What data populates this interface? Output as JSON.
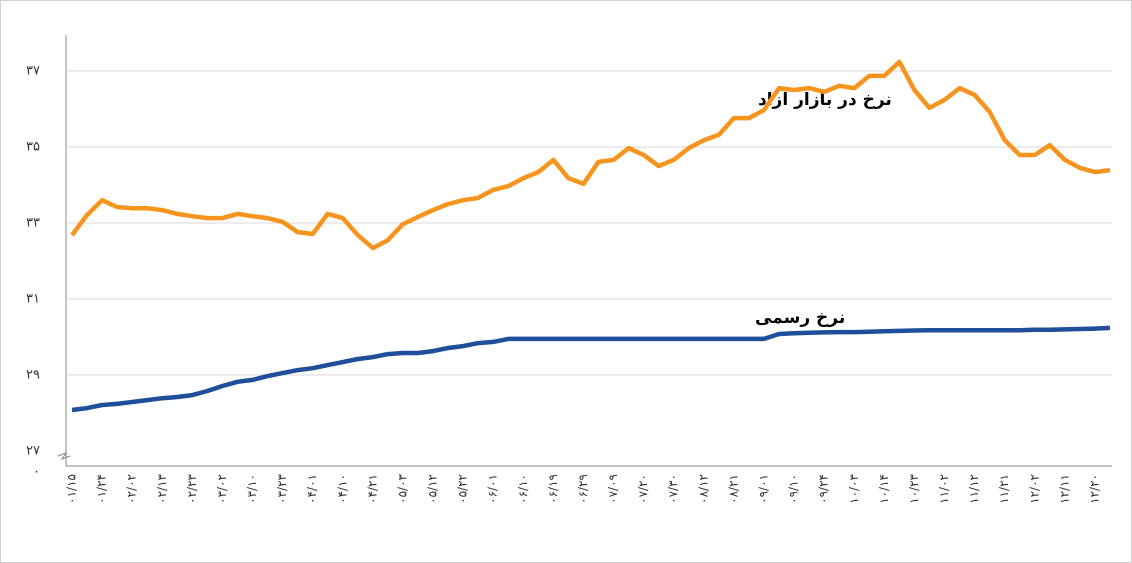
{
  "chart_data": {
    "type": "line",
    "annotations": [
      "نرخ در بازار آزاد",
      "نرخ رسمی"
    ],
    "categories": [
      "۰۱/۱۵",
      null,
      "۰۱/۲۴",
      null,
      "۰۲/۰۲",
      null,
      "۰۲/۱۳",
      null,
      "۰۲/۲۳",
      null,
      "۰۳/۰۲",
      null,
      "۰۳/۱۰",
      null,
      "۰۳/۲۳",
      null,
      "۰۴/۰۱",
      null,
      "۰۴/۱۰",
      null,
      "۰۴/۲۱",
      null,
      "۰۵/۰۳",
      null,
      "۰۵/۱۲",
      null,
      "۰۵/۲۲",
      null,
      "۰۶/۰۱",
      null,
      "۰۶/۱۰",
      null,
      "۰۶/۱۹",
      null,
      "۰۶/۲۹",
      null,
      "۰۷/۰۹",
      null,
      "۰۷/۲۰",
      null,
      "۰۷/۳۰",
      null,
      "۰۸/۱۲",
      null,
      "۰۸/۲۱",
      null,
      "۰۹/۰۱",
      null,
      "۰۹/۱۰",
      null,
      "۰۹/۲۴",
      null,
      "۱۰/۰۳",
      null,
      "۱۰/۱۴",
      null,
      "۱۰/۲۳",
      null,
      "۱۱/۰۲",
      null,
      "۱۱/۱۲",
      null,
      "۱۱/۲۱",
      null,
      "۱۲/۰۲",
      null,
      "۱۲/۱۱",
      null,
      "۱۲/۲۰",
      null
    ],
    "series": [
      {
        "name": "نرخ در بازار آزاد",
        "color": "#f7941d",
        "values": [
          32.68,
          33.21,
          33.6,
          33.42,
          33.39,
          33.39,
          33.34,
          33.24,
          33.18,
          33.13,
          33.13,
          33.24,
          33.18,
          33.13,
          33.03,
          32.76,
          32.71,
          33.24,
          33.13,
          32.68,
          32.34,
          32.55,
          32.97,
          33.16,
          33.34,
          33.5,
          33.6,
          33.66,
          33.87,
          33.97,
          34.18,
          34.34,
          34.66,
          34.18,
          34.03,
          34.61,
          34.66,
          34.97,
          34.79,
          34.5,
          34.66,
          34.97,
          35.18,
          35.32,
          35.76,
          35.76,
          35.97,
          36.55,
          36.5,
          36.55,
          36.45,
          36.61,
          36.55,
          36.87,
          36.87,
          37.24,
          36.5,
          36.03,
          36.24,
          36.55,
          36.37,
          35.92,
          35.18,
          34.79,
          34.79,
          35.05,
          34.66,
          34.45,
          34.34,
          34.39
        ]
      },
      {
        "name": "نرخ رسمی",
        "color": "#1f4e9a",
        "values": [
          28.08,
          28.13,
          28.21,
          28.24,
          28.29,
          28.34,
          28.39,
          28.42,
          28.47,
          28.58,
          28.71,
          28.82,
          28.87,
          28.97,
          29.05,
          29.13,
          29.18,
          29.26,
          29.34,
          29.42,
          29.47,
          29.55,
          29.58,
          29.58,
          29.63,
          29.71,
          29.76,
          29.84,
          29.87,
          29.95,
          29.95,
          29.95,
          29.95,
          29.95,
          29.95,
          29.95,
          29.95,
          29.95,
          29.95,
          29.95,
          29.95,
          29.95,
          29.95,
          29.95,
          29.95,
          29.95,
          29.95,
          30.08,
          30.1,
          30.11,
          30.12,
          30.13,
          30.13,
          30.14,
          30.15,
          30.16,
          30.17,
          30.18,
          30.18,
          30.18,
          30.18,
          30.18,
          30.18,
          30.18,
          30.19,
          30.19,
          30.2,
          30.21,
          30.22,
          30.24
        ]
      }
    ],
    "ylim": [
      0,
      38
    ],
    "yticks": [
      {
        "value": 0,
        "label": "۰"
      },
      {
        "value": 27,
        "label": "۲۷"
      },
      {
        "value": 29,
        "label": "۲۹"
      },
      {
        "value": 31,
        "label": "۳۱"
      },
      {
        "value": 33,
        "label": "۳۳"
      },
      {
        "value": 35,
        "label": "۳۵"
      },
      {
        "value": 37,
        "label": "۳۷"
      }
    ],
    "y_break": true,
    "grid": true
  }
}
